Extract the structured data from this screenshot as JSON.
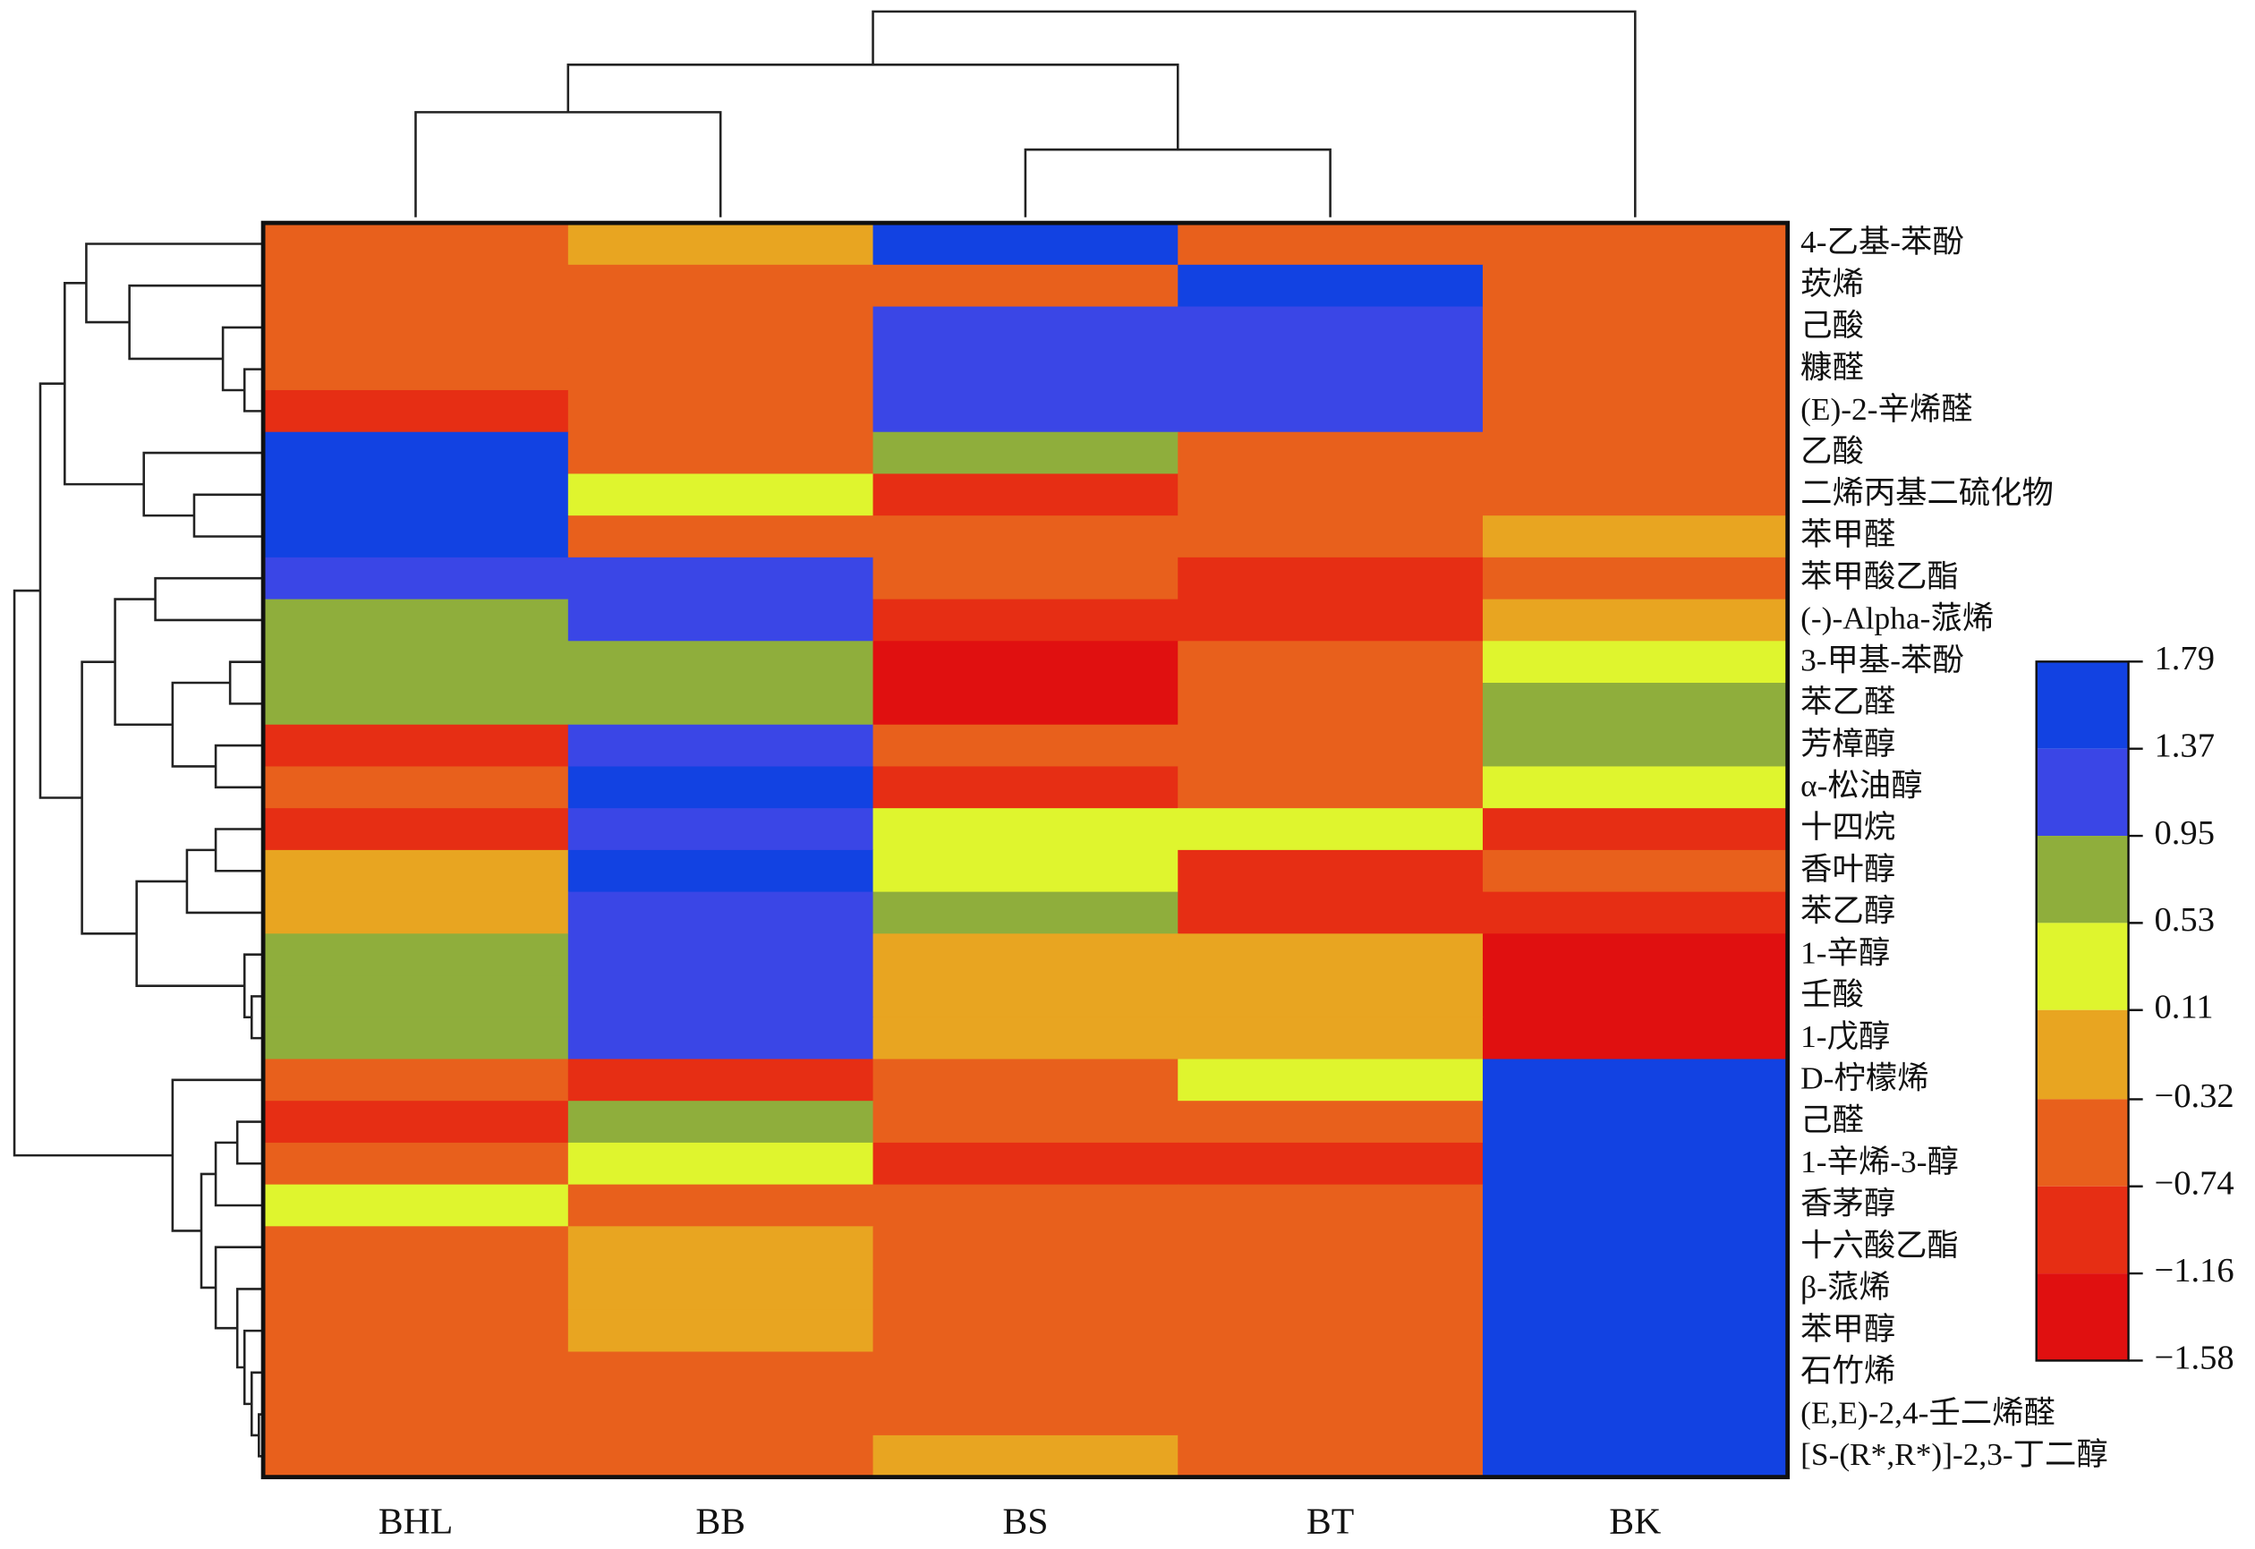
{
  "chart_data": {
    "type": "heatmap",
    "columns": [
      "BHL",
      "BB",
      "BS",
      "BT",
      "BK"
    ],
    "rows": [
      "4-乙基-苯酚",
      "莰烯",
      "己酸",
      "糠醛",
      "(E)-2-辛烯醛",
      "乙酸",
      "二烯丙基二硫化物",
      "苯甲醛",
      "苯甲酸乙酯",
      "(-)-Alpha-蒎烯",
      "3-甲基-苯酚",
      "苯乙醛",
      "芳樟醇",
      "α-松油醇",
      "十四烷",
      "香叶醇",
      "苯乙醇",
      "1-辛醇",
      "壬酸",
      "1-戊醇",
      "D-柠檬烯",
      "己醛",
      "1-辛烯-3-醇",
      "香茅醇",
      "十六酸乙酯",
      "β-蒎烯",
      "苯甲醇",
      "石竹烯",
      "(E,E)-2,4-壬二烯醛",
      "[S-(R*,R*)]-2,3-丁二醇"
    ],
    "values": [
      [
        -0.53,
        -0.1,
        1.58,
        -0.53,
        -0.53
      ],
      [
        -0.53,
        -0.53,
        -0.53,
        1.58,
        -0.53
      ],
      [
        -0.53,
        -0.53,
        1.16,
        1.16,
        -0.53
      ],
      [
        -0.53,
        -0.53,
        1.16,
        1.16,
        -0.53
      ],
      [
        -0.95,
        -0.53,
        1.16,
        1.16,
        -0.53
      ],
      [
        1.58,
        -0.53,
        0.74,
        -0.53,
        -0.53
      ],
      [
        1.58,
        0.32,
        -0.95,
        -0.53,
        -0.53
      ],
      [
        1.58,
        -0.53,
        -0.53,
        -0.53,
        -0.1
      ],
      [
        1.16,
        1.16,
        -0.53,
        -0.95,
        -0.53
      ],
      [
        0.74,
        1.16,
        -0.95,
        -0.95,
        -0.1
      ],
      [
        0.74,
        0.74,
        -1.37,
        -0.53,
        0.32
      ],
      [
        0.74,
        0.74,
        -1.37,
        -0.53,
        0.74
      ],
      [
        -0.95,
        1.16,
        -0.53,
        -0.53,
        0.74
      ],
      [
        -0.53,
        1.58,
        -0.95,
        -0.53,
        0.32
      ],
      [
        -0.95,
        1.16,
        0.32,
        0.32,
        -0.95
      ],
      [
        -0.1,
        1.58,
        0.32,
        -0.95,
        -0.53
      ],
      [
        -0.1,
        1.16,
        0.74,
        -0.95,
        -0.95
      ],
      [
        0.74,
        1.16,
        -0.1,
        -0.1,
        -1.37
      ],
      [
        0.74,
        1.16,
        -0.1,
        -0.1,
        -1.37
      ],
      [
        0.74,
        1.16,
        -0.1,
        -0.1,
        -1.37
      ],
      [
        -0.53,
        -0.95,
        -0.53,
        0.32,
        1.58
      ],
      [
        -0.95,
        0.74,
        -0.53,
        -0.53,
        1.58
      ],
      [
        -0.53,
        0.32,
        -0.95,
        -0.95,
        1.58
      ],
      [
        0.32,
        -0.53,
        -0.53,
        -0.53,
        1.58
      ],
      [
        -0.53,
        -0.1,
        -0.53,
        -0.53,
        1.58
      ],
      [
        -0.53,
        -0.1,
        -0.53,
        -0.53,
        1.58
      ],
      [
        -0.53,
        -0.1,
        -0.53,
        -0.53,
        1.58
      ],
      [
        -0.53,
        -0.53,
        -0.53,
        -0.53,
        1.58
      ],
      [
        -0.53,
        -0.53,
        -0.53,
        -0.53,
        1.58
      ],
      [
        -0.53,
        -0.53,
        -0.1,
        -0.53,
        1.58
      ]
    ],
    "colorbar": {
      "ticks": [
        1.79,
        1.37,
        0.95,
        0.53,
        0.11,
        {
          "value": -0.32,
          "label": "−0.32"
        },
        {
          "value": -0.74,
          "label": "−0.74"
        },
        {
          "value": -1.16,
          "label": "−1.16"
        },
        {
          "value": -1.58,
          "label": "−1.58"
        }
      ],
      "colors": [
        "#1242e2",
        "#3a46e6",
        "#8fae3c",
        "#dff52e",
        "#e8a521",
        "#e8601c",
        "#e62e14",
        "#e01010"
      ]
    }
  }
}
